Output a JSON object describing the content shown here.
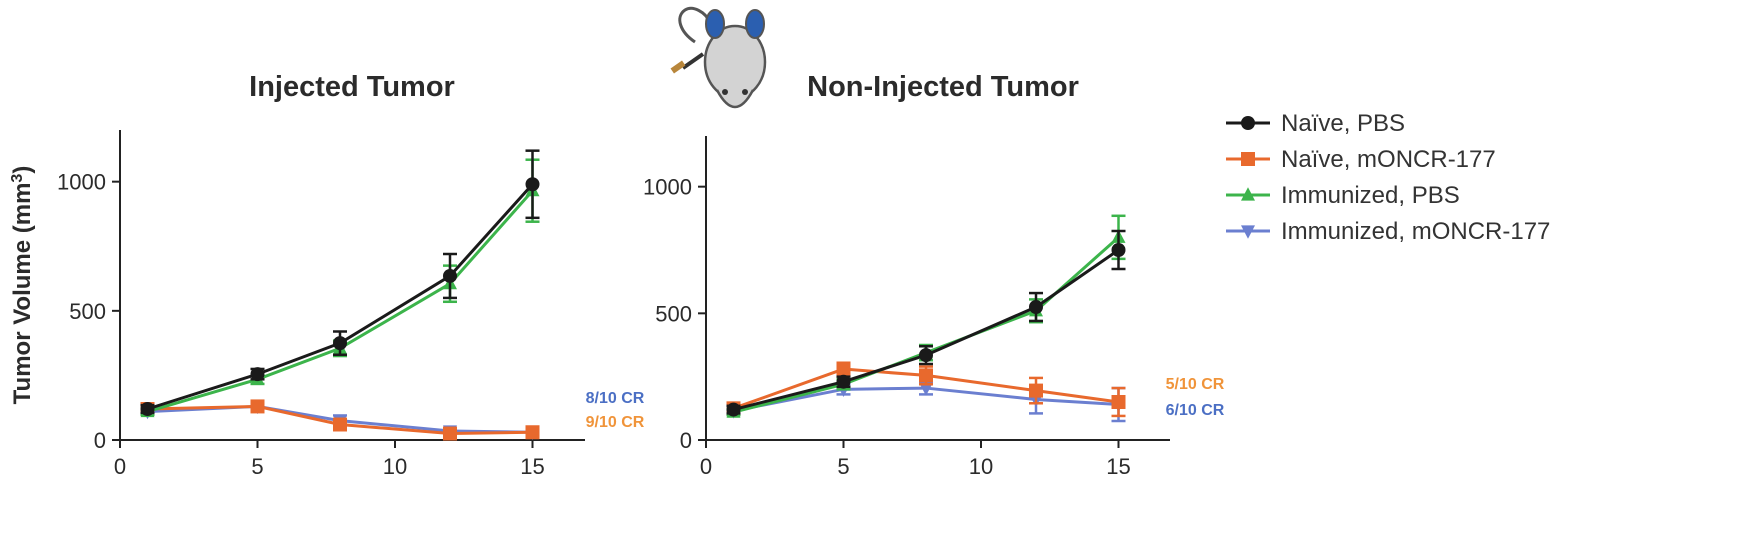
{
  "chart_data": [
    {
      "type": "line",
      "title": "Injected Tumor",
      "ylabel": "Tumor Volume (mm3)",
      "xlabel": "",
      "xlim": [
        0,
        16
      ],
      "ylim": [
        0,
        1200
      ],
      "xticks": [
        0,
        5,
        10,
        15
      ],
      "yticks": [
        0,
        500,
        1000
      ],
      "x": [
        1,
        5,
        8,
        12,
        15
      ],
      "series": [
        {
          "name": "Naïve, PBS",
          "color": "#1a1a1a",
          "marker": "circle",
          "values": [
            120,
            255,
            375,
            635,
            990
          ],
          "errors": [
            15,
            20,
            45,
            85,
            130
          ]
        },
        {
          "name": "Naïve, mONCR-177",
          "color": "#e8692d",
          "marker": "square",
          "values": [
            120,
            130,
            60,
            25,
            30
          ],
          "errors": [
            15,
            20,
            15,
            10,
            8
          ]
        },
        {
          "name": "Immunized, PBS",
          "color": "#3cb44b",
          "marker": "triangle-up",
          "values": [
            110,
            235,
            355,
            605,
            965
          ],
          "errors": [
            12,
            18,
            30,
            70,
            120
          ]
        },
        {
          "name": "Immunized, mONCR-177",
          "color": "#6b7fd0",
          "marker": "triangle-down",
          "values": [
            110,
            130,
            75,
            35,
            30
          ],
          "errors": [
            12,
            15,
            20,
            12,
            8
          ]
        }
      ],
      "annotations": [
        {
          "text": "8/10 CR",
          "color": "#4b6fc4"
        },
        {
          "text": "9/10 CR",
          "color": "#f0943a"
        }
      ]
    },
    {
      "type": "line",
      "title": "Non-Injected Tumor",
      "ylabel": "",
      "xlabel": "",
      "xlim": [
        0,
        16
      ],
      "ylim": [
        0,
        1200
      ],
      "xticks": [
        0,
        5,
        10,
        15
      ],
      "yticks": [
        0,
        500,
        1000
      ],
      "x": [
        1,
        5,
        8,
        12,
        15
      ],
      "series": [
        {
          "name": "Naïve, PBS",
          "color": "#1a1a1a",
          "marker": "circle",
          "values": [
            120,
            230,
            335,
            525,
            750
          ],
          "errors": [
            15,
            20,
            35,
            55,
            75
          ]
        },
        {
          "name": "Naïve, mONCR-177",
          "color": "#e8692d",
          "marker": "square",
          "values": [
            125,
            280,
            255,
            195,
            150
          ],
          "errors": [
            15,
            25,
            35,
            50,
            55
          ]
        },
        {
          "name": "Immunized, PBS",
          "color": "#3cb44b",
          "marker": "triangle-up",
          "values": [
            110,
            220,
            345,
            510,
            800
          ],
          "errors": [
            12,
            20,
            30,
            45,
            85
          ]
        },
        {
          "name": "Immunized, mONCR-177",
          "color": "#6b7fd0",
          "marker": "triangle-down",
          "values": [
            115,
            200,
            205,
            160,
            140
          ],
          "errors": [
            12,
            20,
            25,
            55,
            65
          ]
        }
      ],
      "annotations": [
        {
          "text": "5/10 CR",
          "color": "#f0943a"
        },
        {
          "text": "6/10 CR",
          "color": "#4b6fc4"
        }
      ]
    }
  ],
  "legend": {
    "placement": "right",
    "items": [
      {
        "label": "Naïve, PBS",
        "color": "#1a1a1a",
        "marker": "circle"
      },
      {
        "label": "Naïve, mONCR-177",
        "color": "#e8692d",
        "marker": "square"
      },
      {
        "label": "Immunized, PBS",
        "color": "#3cb44b",
        "marker": "triangle-up"
      },
      {
        "label": "Immunized, mONCR-177",
        "color": "#6b7fd0",
        "marker": "triangle-down"
      }
    ]
  },
  "mouse_icon": "mouse-icon"
}
